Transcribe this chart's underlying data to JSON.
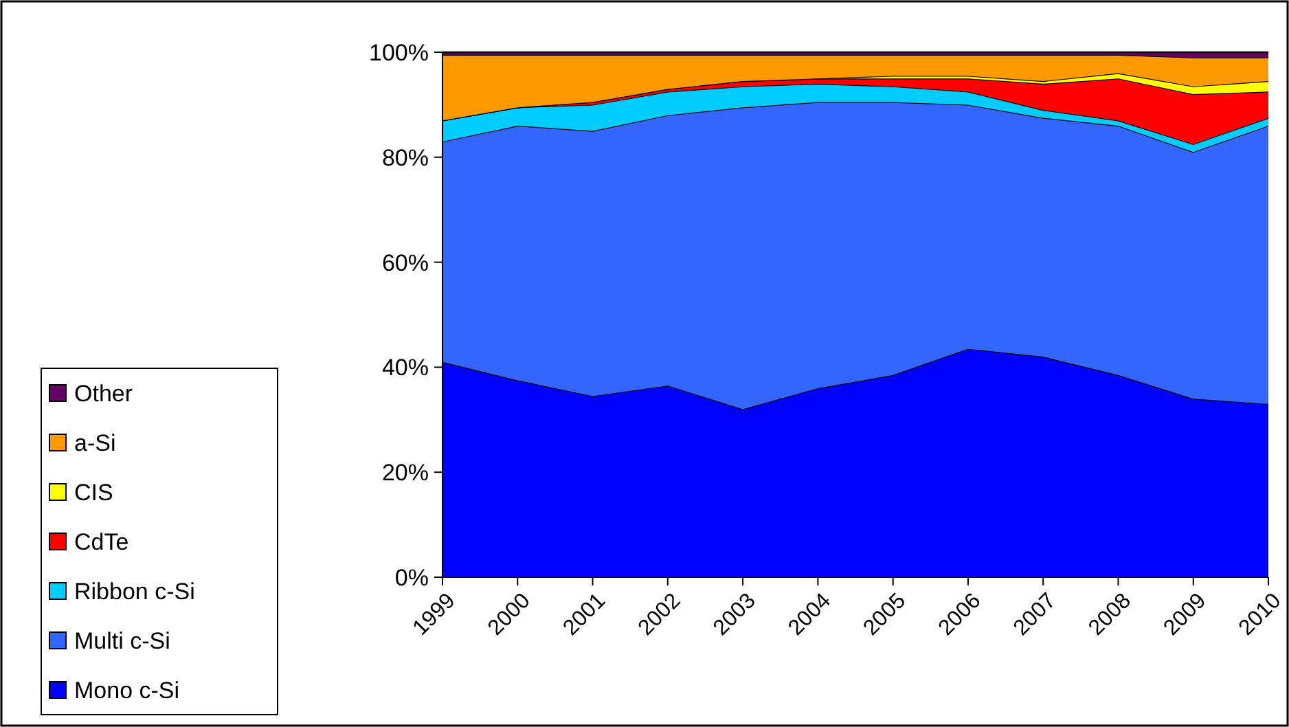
{
  "chart_data": {
    "type": "area",
    "stacked": true,
    "categories": [
      "1999",
      "2000",
      "2001",
      "2002",
      "2003",
      "2004",
      "2005",
      "2006",
      "2007",
      "2008",
      "2009",
      "2010"
    ],
    "series": [
      {
        "name": "Mono c-Si",
        "color": "#0000ff",
        "values": [
          41,
          37.5,
          34.5,
          36.5,
          32,
          36,
          38.5,
          43.5,
          42,
          38.5,
          34,
          33
        ]
      },
      {
        "name": "Multi c-Si",
        "color": "#3366ff",
        "values": [
          42,
          48.5,
          50.5,
          51.5,
          57.5,
          54.5,
          52,
          46.5,
          45.5,
          47.5,
          47,
          53
        ]
      },
      {
        "name": "Ribbon c-Si",
        "color": "#00ccff",
        "values": [
          4,
          3.5,
          5,
          4.5,
          4,
          3.5,
          3,
          2.5,
          1.5,
          1,
          1.5,
          1.5
        ]
      },
      {
        "name": "CdTe",
        "color": "#ff0000",
        "values": [
          0,
          0,
          0.5,
          0.5,
          1,
          1,
          1.5,
          2.5,
          5,
          8,
          9.5,
          5
        ]
      },
      {
        "name": "CIS",
        "color": "#ffff00",
        "values": [
          0,
          0,
          0,
          0,
          0,
          0,
          0.5,
          0.5,
          0.5,
          1,
          1.5,
          2
        ]
      },
      {
        "name": "a-Si",
        "color": "#ff9900",
        "values": [
          12.5,
          10,
          9,
          6.5,
          5,
          4.5,
          4,
          4,
          5,
          3.5,
          5.5,
          4.5
        ]
      },
      {
        "name": "Other",
        "color": "#660066",
        "values": [
          0.5,
          0.5,
          0.5,
          0.5,
          0.5,
          0.5,
          0.5,
          0.5,
          0.5,
          0.5,
          1,
          1
        ]
      }
    ],
    "ylim": [
      0,
      100
    ],
    "yticks": [
      {
        "value": 0,
        "label": "0%"
      },
      {
        "value": 20,
        "label": "20%"
      },
      {
        "value": 40,
        "label": "40%"
      },
      {
        "value": 60,
        "label": "60%"
      },
      {
        "value": 80,
        "label": "80%"
      },
      {
        "value": 100,
        "label": "100%"
      }
    ],
    "legend": "bottom left"
  }
}
